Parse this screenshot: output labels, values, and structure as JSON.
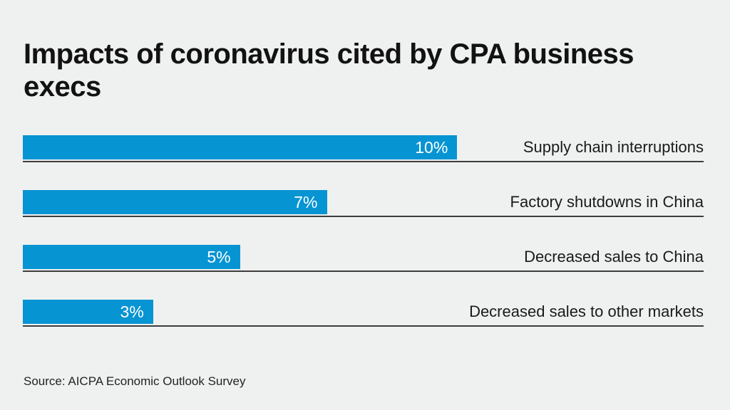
{
  "title": "Impacts of coronavirus cited by CPA business execs",
  "source": "Source: AICPA Economic Outlook Survey",
  "colors": {
    "bar": "#0794d3",
    "background": "#eff1f0",
    "baseline": "#3d3d3d",
    "title_text": "#121212",
    "value_text": "#ffffff"
  },
  "chart_data": {
    "type": "bar",
    "orientation": "horizontal",
    "title": "Impacts of coronavirus cited by CPA business execs",
    "categories": [
      "Supply chain interruptions",
      "Factory shutdowns in China",
      "Decreased sales to China",
      "Decreased sales to other markets"
    ],
    "values": [
      10,
      7,
      5,
      3
    ],
    "value_labels": [
      "10%",
      "7%",
      "5%",
      "3%"
    ],
    "xlabel": "",
    "ylabel": "",
    "xlim": [
      0,
      10
    ],
    "grid": false,
    "legend": false,
    "value_label_position": "inside-end",
    "category_label_position": "right",
    "bar_scale_fraction": 0.638
  }
}
